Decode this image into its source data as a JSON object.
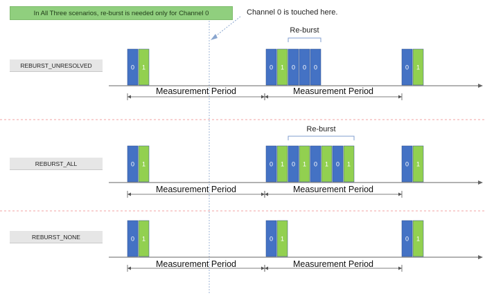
{
  "banner": {
    "text": "In All Three scenarios, re-burst is needed only for Channel 0"
  },
  "note": {
    "text": "Channel 0 is touched here."
  },
  "colors": {
    "channel_0": "#4472c4",
    "channel_1": "#92d050",
    "banner_bg": "#90cf7e",
    "divider": "#f2a0a0"
  },
  "scenarios": [
    {
      "label": "REBURST_UNRESOLVED",
      "reburst_label": "Re-burst",
      "bursts": [
        {
          "group": "burst-1",
          "channels": [
            "0",
            "1"
          ]
        },
        {
          "group": "burst-2",
          "channels": [
            "0",
            "1"
          ]
        },
        {
          "group": "reburst",
          "channels": [
            "0",
            "0",
            "0"
          ]
        },
        {
          "group": "burst-3",
          "channels": [
            "0",
            "1"
          ]
        }
      ],
      "periods": [
        "Measurement Period",
        "Measurement Period"
      ]
    },
    {
      "label": "REBURST_ALL",
      "reburst_label": "Re-burst",
      "bursts": [
        {
          "group": "burst-1",
          "channels": [
            "0",
            "1"
          ]
        },
        {
          "group": "burst-2",
          "channels": [
            "0",
            "1"
          ]
        },
        {
          "group": "reburst",
          "channels": [
            "0",
            "1",
            "0",
            "1",
            "0",
            "1"
          ]
        },
        {
          "group": "burst-3",
          "channels": [
            "0",
            "1"
          ]
        }
      ],
      "periods": [
        "Measurement Period",
        "Measurement Period"
      ]
    },
    {
      "label": "REBURST_NONE",
      "reburst_label": "",
      "bursts": [
        {
          "group": "burst-1",
          "channels": [
            "0",
            "1"
          ]
        },
        {
          "group": "burst-2",
          "channels": [
            "0",
            "1"
          ]
        },
        {
          "group": "burst-3",
          "channels": [
            "0",
            "1"
          ]
        }
      ],
      "periods": [
        "Measurement Period",
        "Measurement Period"
      ]
    }
  ]
}
